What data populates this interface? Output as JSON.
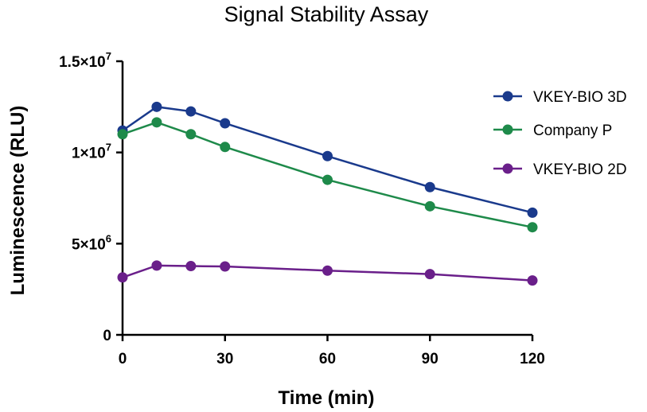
{
  "chart_data": {
    "type": "line",
    "title": "Signal Stability Assay",
    "xlabel": "Time (min)",
    "ylabel": "Luminescence (RLU)",
    "x": [
      0,
      10,
      20,
      30,
      60,
      90,
      120
    ],
    "xlim": [
      0,
      120
    ],
    "ylim": [
      0,
      15000000
    ],
    "x_ticks": [
      0,
      30,
      60,
      90,
      120
    ],
    "x_tick_labels": [
      "0",
      "30",
      "60",
      "90",
      "120"
    ],
    "y_ticks": [
      0,
      5000000,
      10000000,
      15000000
    ],
    "y_tick_labels": [
      {
        "mantissa": "0",
        "exp": ""
      },
      {
        "mantissa": "5×10",
        "exp": "6"
      },
      {
        "mantissa": "1×10",
        "exp": "7"
      },
      {
        "mantissa": "1.5×10",
        "exp": "7"
      }
    ],
    "grid": false,
    "legend_position": "right",
    "series": [
      {
        "name": "VKEY-BIO 3D",
        "color": "#1a3a8c",
        "values": [
          11200000,
          12500000,
          12250000,
          11600000,
          9800000,
          8100000,
          6700000
        ]
      },
      {
        "name": "Company P",
        "color": "#1e8a4a",
        "values": [
          11000000,
          11650000,
          11000000,
          10300000,
          8500000,
          7050000,
          5900000
        ]
      },
      {
        "name": "VKEY-BIO 2D",
        "color": "#6a1f8a",
        "values": [
          3150000,
          3800000,
          3770000,
          3750000,
          3520000,
          3330000,
          2980000
        ]
      }
    ]
  }
}
